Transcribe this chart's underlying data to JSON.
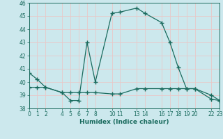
{
  "xlabel": "Humidex (Indice chaleur)",
  "bg_color": "#cce8ed",
  "grid_color": "#e8c8c8",
  "line_color": "#1a6b5e",
  "series1_x": [
    0,
    1,
    2,
    4,
    5,
    6,
    7,
    8,
    10,
    11,
    13,
    14,
    16,
    17,
    18,
    19,
    20,
    22,
    23
  ],
  "series1_y": [
    40.7,
    40.2,
    39.6,
    39.2,
    38.6,
    38.6,
    43.0,
    40.0,
    45.2,
    45.3,
    45.6,
    45.2,
    44.5,
    43.0,
    41.1,
    39.5,
    39.5,
    39.0,
    38.6
  ],
  "series2_x": [
    0,
    1,
    2,
    4,
    5,
    6,
    7,
    8,
    10,
    11,
    13,
    14,
    16,
    17,
    18,
    19,
    20,
    22,
    23
  ],
  "series2_y": [
    39.6,
    39.6,
    39.6,
    39.2,
    39.2,
    39.2,
    39.2,
    39.2,
    39.1,
    39.1,
    39.5,
    39.5,
    39.5,
    39.5,
    39.5,
    39.5,
    39.5,
    38.7,
    38.6
  ],
  "xlim": [
    0,
    23
  ],
  "ylim": [
    38,
    46
  ],
  "xticks": [
    0,
    1,
    2,
    4,
    5,
    6,
    7,
    8,
    10,
    11,
    13,
    14,
    16,
    17,
    18,
    19,
    20,
    22,
    23
  ],
  "xtick_labels": [
    "0",
    "1",
    "2",
    "4",
    "5",
    "6",
    "7",
    "8",
    "10",
    "11",
    "13",
    "14",
    "16",
    "17",
    "18",
    "19",
    "20",
    "22",
    "23"
  ],
  "yticks": [
    38,
    39,
    40,
    41,
    42,
    43,
    44,
    45,
    46
  ],
  "tick_fontsize": 5.5,
  "label_fontsize": 6.5
}
